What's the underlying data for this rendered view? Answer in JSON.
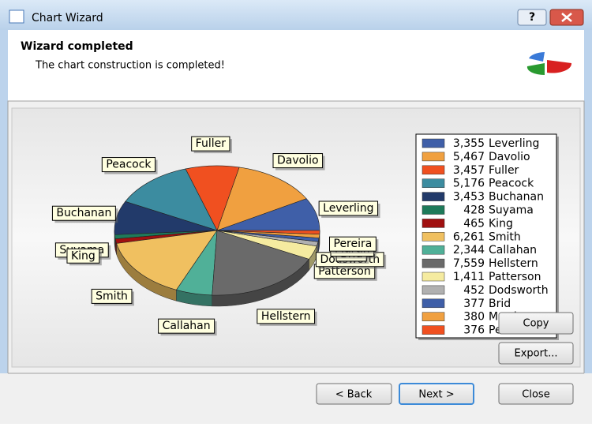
{
  "window": {
    "title": "Chart Wizard"
  },
  "header": {
    "title": "Wizard completed",
    "subtitle": "The chart construction is completed!"
  },
  "chart_data": {
    "type": "pie",
    "categories": [
      "Leverling",
      "Davolio",
      "Fuller",
      "Peacock",
      "Buchanan",
      "Suyama",
      "King",
      "Smith",
      "Callahan",
      "Hellstern",
      "Patterson",
      "Dodsworth",
      "Brid",
      "Martin",
      "Pereira"
    ],
    "values": [
      3355,
      5467,
      3457,
      5176,
      3453,
      428,
      465,
      6261,
      2344,
      7559,
      1411,
      452,
      377,
      380,
      376
    ],
    "value_labels": [
      "3,355",
      "5,467",
      "3,457",
      "5,176",
      "3,453",
      "428",
      "465",
      "6,261",
      "2,344",
      "7,559",
      "1,411",
      "452",
      "377",
      "380",
      "376"
    ],
    "colors": [
      "#3f5fa8",
      "#f0a040",
      "#f05020",
      "#3c8ca0",
      "#223a6a",
      "#1e7a5a",
      "#a01010",
      "#f0c060",
      "#50b098",
      "#6a6a6a",
      "#f5eba0",
      "#b0b0b0",
      "#3f5fa8",
      "#f0a040",
      "#f05020"
    ]
  },
  "buttons": {
    "copy": "Copy",
    "export": "Export...",
    "back": "< Back",
    "next": "Next >",
    "close": "Close"
  }
}
